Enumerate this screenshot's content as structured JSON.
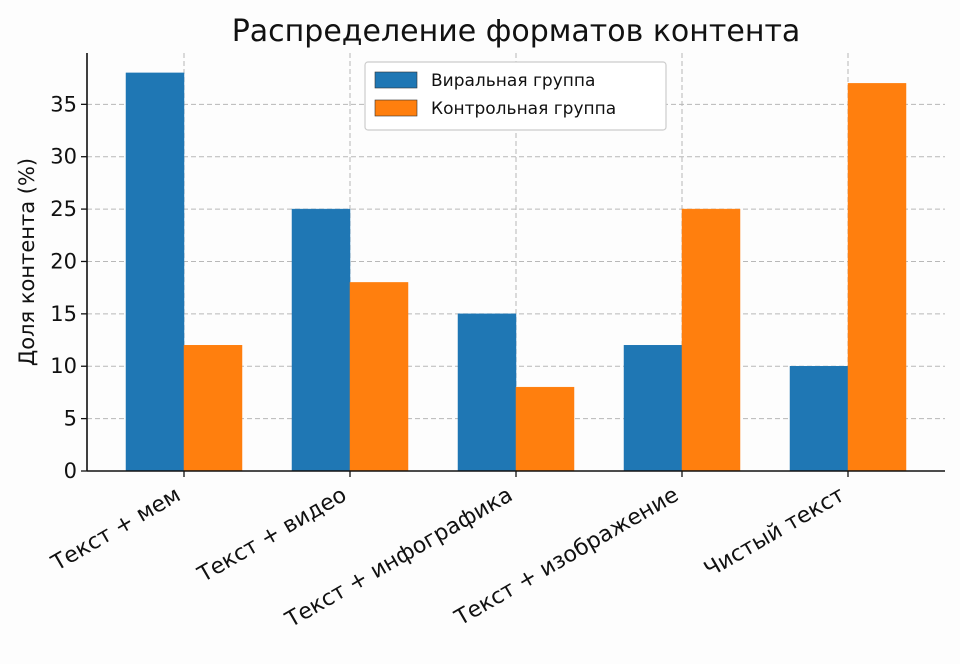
{
  "chart_data": {
    "type": "bar",
    "title": "Распределение форматов контента",
    "xlabel": "",
    "ylabel": "Доля контента (%)",
    "categories": [
      "Текст + мем",
      "Текст + видео",
      "Текст + инфографика",
      "Текст + изображение",
      "Чистый текст"
    ],
    "series": [
      {
        "name": "Виральная группа",
        "values": [
          38,
          25,
          15,
          12,
          10
        ],
        "color": "#1f77b4"
      },
      {
        "name": "Контрольная группа",
        "values": [
          12,
          18,
          8,
          25,
          37
        ],
        "color": "#ff7f0e"
      }
    ],
    "ylim": [
      0,
      39.9
    ],
    "yticks": [
      0,
      5,
      10,
      15,
      20,
      25,
      30,
      35
    ],
    "grid": true,
    "legend": "upper-center"
  }
}
